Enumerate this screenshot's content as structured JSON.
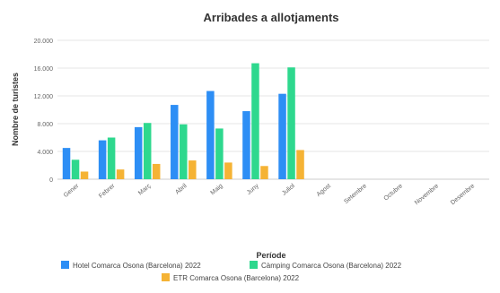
{
  "chart_data": {
    "type": "bar",
    "title": "Arribades a allotjaments",
    "xlabel": "Període",
    "ylabel": "Nombre de turistes",
    "ylim": [
      0,
      20000
    ],
    "yticks": [
      "0",
      "4.000",
      "8.000",
      "12.000",
      "16.000",
      "20.000"
    ],
    "grid": true,
    "legend_position": "bottom",
    "categories": [
      "Gener",
      "Febrer",
      "Març",
      "Abril",
      "Maig",
      "Juny",
      "Juliol",
      "Agost",
      "Setembre",
      "Octubre",
      "Novembre",
      "Desembre"
    ],
    "series": [
      {
        "name": "Hotel Comarca Osona (Barcelona) 2022",
        "color": "#2d8ef5",
        "values": [
          4500,
          5600,
          7500,
          10700,
          12700,
          9800,
          12300,
          null,
          null,
          null,
          null,
          null
        ]
      },
      {
        "name": "Càmping Comarca Osona (Barcelona) 2022",
        "color": "#2ed88e",
        "values": [
          2800,
          6000,
          8100,
          7900,
          7300,
          16700,
          16100,
          null,
          null,
          null,
          null,
          null
        ]
      },
      {
        "name": "ETR Comarca Osona (Barcelona) 2022",
        "color": "#f5b335",
        "values": [
          1100,
          1400,
          2200,
          2700,
          2400,
          1900,
          4200,
          null,
          null,
          null,
          null,
          null
        ]
      }
    ]
  }
}
